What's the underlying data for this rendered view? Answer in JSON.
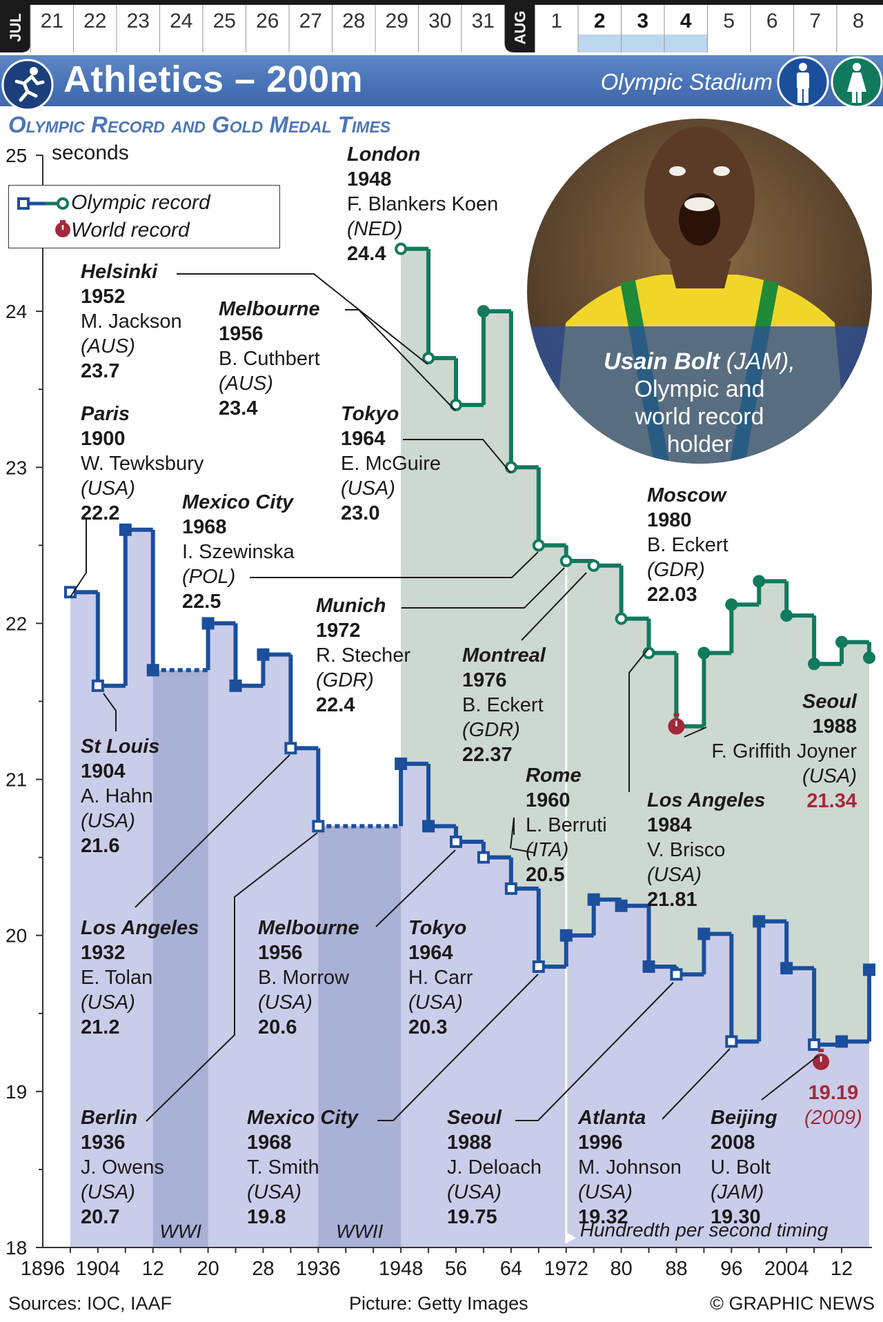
{
  "calendar": {
    "jul_label": "JUL",
    "jul_days": [
      "21",
      "22",
      "23",
      "24",
      "25",
      "26",
      "27",
      "28",
      "29",
      "30",
      "31"
    ],
    "aug_label": "AUG",
    "aug_days": [
      "1",
      "2",
      "3",
      "4",
      "5",
      "6",
      "7",
      "8"
    ],
    "highlight_days": [
      "2",
      "3",
      "4"
    ]
  },
  "header": {
    "title": "Athletics – 200m",
    "venue": "Olympic Stadium",
    "sport_icon": "runner-icon",
    "men_icon": "man-icon",
    "women_icon": "woman-icon"
  },
  "subtitle": "Olympic Record and Gold Medal Times",
  "legend": {
    "olympic_record": "Olympic record",
    "world_record": "World record"
  },
  "photo": {
    "caption_name": "Usain Bolt",
    "caption_country": " (JAM),",
    "caption_lines": [
      "Olympic and",
      "world record",
      "holder"
    ]
  },
  "notes": {
    "wwi": "WWI",
    "wwii": "WWII",
    "timing": "Hundredth per second timing"
  },
  "footer": {
    "sources": "Sources: IOC, IAAF",
    "picture": "Picture: Getty Images",
    "credit": "© GRAPHIC NEWS"
  },
  "colors": {
    "men": "#1b4f9c",
    "women": "#117a5c",
    "men_fill": "#cacde9",
    "women_fill": "#cdd8d1",
    "war_band": "#a9b1d6",
    "world_record": "#a3283a",
    "banner": "#4a74b8"
  },
  "chart_data": {
    "type": "line",
    "ylabel": "seconds",
    "ylim": [
      18,
      25
    ],
    "yticks": [
      "18",
      "19",
      "20",
      "21",
      "22",
      "23",
      "24",
      "25"
    ],
    "xlim": [
      1896,
      2016
    ],
    "xtick_labels": [
      "1896",
      "1904",
      "12",
      "20",
      "28",
      "1936",
      "1948",
      "56",
      "64",
      "1972",
      "80",
      "88",
      "96",
      "2004",
      "12"
    ],
    "xtick_years": [
      1896,
      1904,
      1912,
      1920,
      1928,
      1936,
      1948,
      1956,
      1964,
      1972,
      1980,
      1988,
      1996,
      2004,
      2012
    ],
    "series": [
      {
        "name": "Men",
        "points": [
          {
            "year": 1900,
            "time": 22.2
          },
          {
            "year": 1904,
            "time": 21.6
          },
          {
            "year": 1908,
            "time": 22.6
          },
          {
            "year": 1912,
            "time": 21.7
          },
          {
            "year": 1920,
            "time": 22.0
          },
          {
            "year": 1924,
            "time": 21.6
          },
          {
            "year": 1928,
            "time": 21.8
          },
          {
            "year": 1932,
            "time": 21.2
          },
          {
            "year": 1936,
            "time": 20.7
          },
          {
            "year": 1948,
            "time": 21.1
          },
          {
            "year": 1952,
            "time": 20.7
          },
          {
            "year": 1956,
            "time": 20.6
          },
          {
            "year": 1960,
            "time": 20.5
          },
          {
            "year": 1964,
            "time": 20.3
          },
          {
            "year": 1968,
            "time": 19.8
          },
          {
            "year": 1972,
            "time": 20.0
          },
          {
            "year": 1976,
            "time": 20.23
          },
          {
            "year": 1980,
            "time": 20.19
          },
          {
            "year": 1984,
            "time": 19.8
          },
          {
            "year": 1988,
            "time": 19.75
          },
          {
            "year": 1992,
            "time": 20.01
          },
          {
            "year": 1996,
            "time": 19.32
          },
          {
            "year": 2000,
            "time": 20.09
          },
          {
            "year": 2004,
            "time": 19.79
          },
          {
            "year": 2008,
            "time": 19.3
          },
          {
            "year": 2012,
            "time": 19.32
          },
          {
            "year": 2016,
            "time": 19.78
          }
        ],
        "record_years": [
          1900,
          1904,
          1932,
          1936,
          1956,
          1960,
          1964,
          1968,
          1988,
          1996,
          2008
        ]
      },
      {
        "name": "Women",
        "points": [
          {
            "year": 1948,
            "time": 24.4
          },
          {
            "year": 1952,
            "time": 23.7
          },
          {
            "year": 1956,
            "time": 23.4
          },
          {
            "year": 1960,
            "time": 24.0
          },
          {
            "year": 1964,
            "time": 23.0
          },
          {
            "year": 1968,
            "time": 22.5
          },
          {
            "year": 1972,
            "time": 22.4
          },
          {
            "year": 1976,
            "time": 22.37
          },
          {
            "year": 1980,
            "time": 22.03
          },
          {
            "year": 1984,
            "time": 21.81
          },
          {
            "year": 1988,
            "time": 21.34
          },
          {
            "year": 1992,
            "time": 21.81
          },
          {
            "year": 1996,
            "time": 22.12
          },
          {
            "year": 2000,
            "time": 22.27
          },
          {
            "year": 2004,
            "time": 22.05
          },
          {
            "year": 2008,
            "time": 21.74
          },
          {
            "year": 2012,
            "time": 21.88
          },
          {
            "year": 2016,
            "time": 21.78
          }
        ],
        "record_years": [
          1948,
          1952,
          1956,
          1964,
          1968,
          1972,
          1976,
          1980,
          1984
        ]
      }
    ],
    "world_records": [
      {
        "year": 1988,
        "time": 21.34,
        "series": "Women"
      },
      {
        "year": 2009,
        "time": 19.19,
        "series": "Men"
      }
    ],
    "war_gaps": [
      {
        "from": 1912,
        "to": 1920,
        "label": "WWI"
      },
      {
        "from": 1936,
        "to": 1948,
        "label": "WWII"
      }
    ],
    "timing_change_year": 1972,
    "annotations": [
      {
        "city": "London",
        "year": "1948",
        "athlete": "F. Blankers Koen",
        "nation": "(NED)",
        "time": "24.4"
      },
      {
        "city": "Helsinki",
        "year": "1952",
        "athlete": "M. Jackson",
        "nation": "(AUS)",
        "time": "23.7"
      },
      {
        "city": "Melbourne",
        "year": "1956",
        "athlete": "B. Cuthbert",
        "nation": "(AUS)",
        "time": "23.4"
      },
      {
        "city": "Paris",
        "year": "1900",
        "athlete": "W. Tewksbury",
        "nation": "(USA)",
        "time": "22.2"
      },
      {
        "city": "Tokyo",
        "year": "1964",
        "athlete": "E. McGuire",
        "nation": "(USA)",
        "time": "23.0"
      },
      {
        "city": "Mexico City",
        "year": "1968",
        "athlete": "I. Szewinska",
        "nation": "(POL)",
        "time": "22.5"
      },
      {
        "city": "Moscow",
        "year": "1980",
        "athlete": "B. Eckert",
        "nation": "(GDR)",
        "time": "22.03"
      },
      {
        "city": "Munich",
        "year": "1972",
        "athlete": "R. Stecher",
        "nation": "(GDR)",
        "time": "22.4"
      },
      {
        "city": "Montreal",
        "year": "1976",
        "athlete": "B. Eckert",
        "nation": "(GDR)",
        "time": "22.37"
      },
      {
        "city": "Seoul",
        "year": "1988",
        "athlete": "F. Griffith Joyner",
        "nation": "(USA)",
        "time": "21.34"
      },
      {
        "city": "St Louis",
        "year": "1904",
        "athlete": "A. Hahn",
        "nation": "(USA)",
        "time": "21.6"
      },
      {
        "city": "Rome",
        "year": "1960",
        "athlete": "L. Berruti",
        "nation": "(ITA)",
        "time": "20.5"
      },
      {
        "city": "Los Angeles",
        "year": "1984",
        "athlete": "V. Brisco",
        "nation": "(USA)",
        "time": "21.81"
      },
      {
        "city": "Los Angeles",
        "year": "1932",
        "athlete": "E. Tolan",
        "nation": "(USA)",
        "time": "21.2"
      },
      {
        "city": "Melbourne",
        "year": "1956",
        "athlete": "B. Morrow",
        "nation": "(USA)",
        "time": "20.6"
      },
      {
        "city": "Tokyo",
        "year": "1964",
        "athlete": "H. Carr",
        "nation": "(USA)",
        "time": "20.3"
      },
      {
        "city": "Berlin",
        "year": "1936",
        "athlete": "J. Owens",
        "nation": "(USA)",
        "time": "20.7"
      },
      {
        "city": "Mexico City",
        "year": "1968",
        "athlete": "T. Smith",
        "nation": "(USA)",
        "time": "19.8"
      },
      {
        "city": "Seoul",
        "year": "1988",
        "athlete": "J. Deloach",
        "nation": "(USA)",
        "time": "19.75"
      },
      {
        "city": "Atlanta",
        "year": "1996",
        "athlete": "M. Johnson",
        "nation": "(USA)",
        "time": "19.32"
      },
      {
        "city": "Beijing",
        "year": "2008",
        "athlete": "U. Bolt",
        "nation": "(JAM)",
        "time": "19.30"
      }
    ],
    "world_record_label": {
      "time": "19.19",
      "year": "(2009)"
    }
  }
}
